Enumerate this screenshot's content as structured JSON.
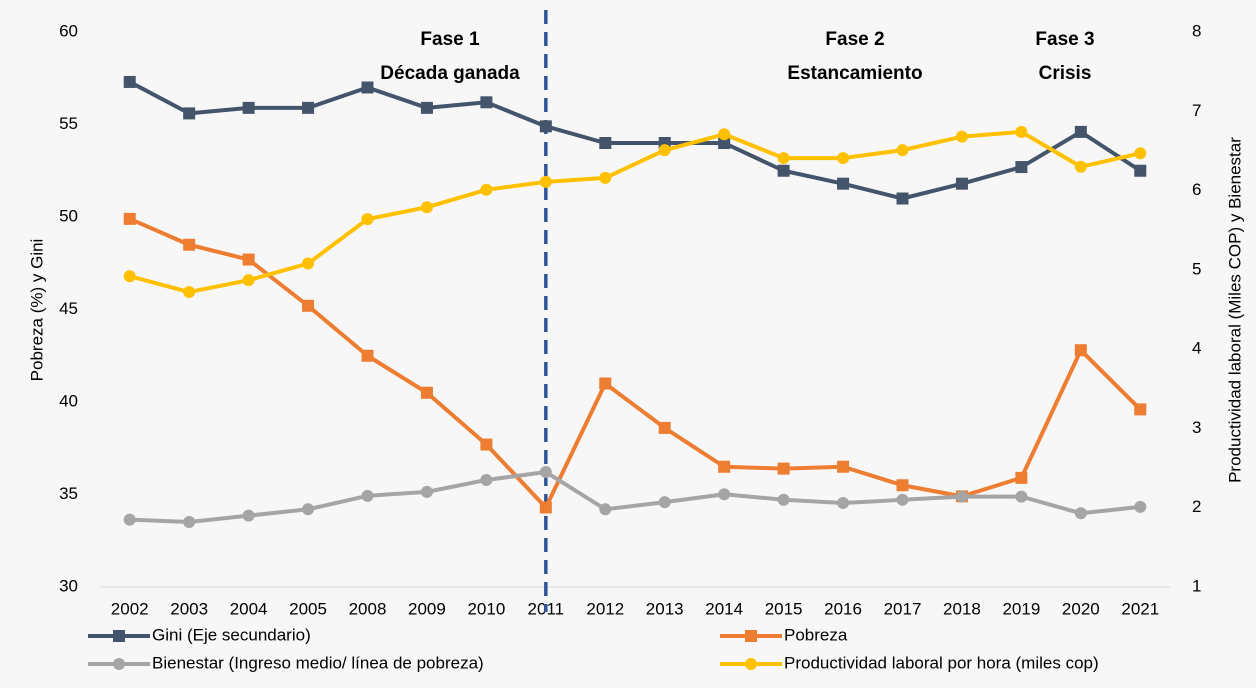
{
  "chart_data": {
    "type": "line",
    "y_label": "Pobreza (%) y Gini",
    "y2_label": "Productividad laboral (Miles COP) y Bienestar",
    "annotations": [
      [
        "Fase 1",
        "Década ganada"
      ],
      [
        "Fase 2",
        "Estancamiento"
      ],
      [
        "Fase 3",
        "Crisis"
      ]
    ],
    "categories": [
      "2002",
      "2003",
      "2004",
      "2005",
      "2008",
      "2009",
      "2010",
      "2011",
      "2012",
      "2013",
      "2014",
      "2015",
      "2016",
      "2017",
      "2018",
      "2019",
      "2020",
      "2021"
    ],
    "ylim": [
      30,
      60
    ],
    "yticks": [
      30,
      35,
      40,
      45,
      50,
      55,
      60
    ],
    "y2lim": [
      1,
      8
    ],
    "y2ticks": [
      1,
      2,
      3,
      4,
      5,
      6,
      7,
      8
    ],
    "series": [
      {
        "name": "Gini (Eje secundario)",
        "color": "#44546a",
        "marker": "square",
        "values": [
          57.3,
          55.6,
          55.9,
          55.9,
          57.0,
          55.9,
          56.2,
          54.9,
          54.0,
          54.0,
          54.0,
          52.5,
          51.8,
          51.0,
          51.8,
          52.7,
          54.6,
          52.5
        ]
      },
      {
        "name": "Pobreza",
        "color": "#ed7d31",
        "marker": "square",
        "values": [
          49.9,
          48.5,
          47.7,
          45.2,
          42.5,
          40.5,
          37.7,
          34.3,
          41.0,
          38.6,
          36.5,
          36.4,
          36.5,
          35.5,
          34.9,
          35.9,
          42.8,
          39.6
        ]
      },
      {
        "name": "Bienestar (Ingreso medio/ línea de pobreza)",
        "color": "#a5a5a5",
        "marker": "circle",
        "axis": "y2",
        "values": [
          1.85,
          1.82,
          1.9,
          1.98,
          2.15,
          2.2,
          2.35,
          2.45,
          1.98,
          2.07,
          2.17,
          2.1,
          2.06,
          2.1,
          2.14,
          2.14,
          1.93,
          2.01
        ]
      },
      {
        "name": "Productividad laboral por hora (miles cop)",
        "color": "#ffc000",
        "marker": "circle",
        "axis": "y2",
        "values": [
          4.92,
          4.72,
          4.87,
          5.08,
          5.64,
          5.79,
          6.01,
          6.11,
          6.16,
          6.51,
          6.71,
          6.41,
          6.41,
          6.51,
          6.68,
          6.74,
          6.3,
          6.47
        ]
      }
    ]
  }
}
